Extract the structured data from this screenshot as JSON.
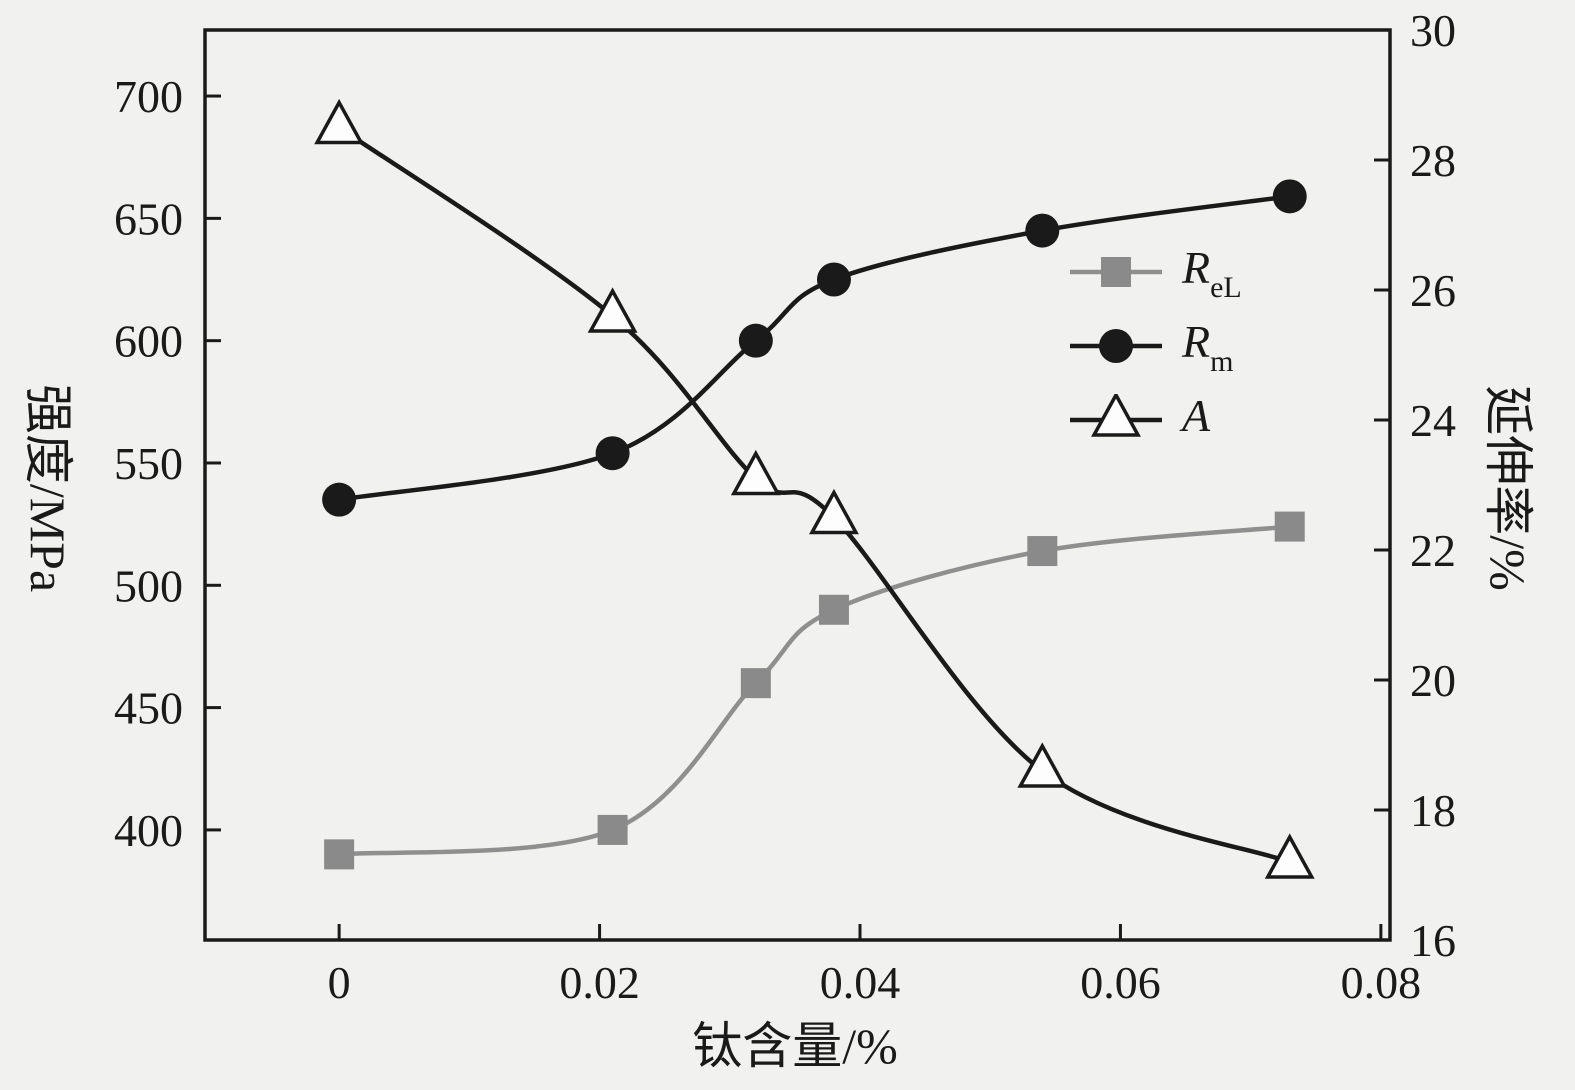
{
  "chart_data": {
    "type": "line",
    "title": "",
    "xlabel": "钛含量/%",
    "ylabel_left": "强度/MPa",
    "ylabel_right": "延伸率/%",
    "x": [
      0,
      0.021,
      0.032,
      0.038,
      0.054,
      0.073
    ],
    "series": [
      {
        "name": "ReL",
        "axis": "left",
        "marker": "square",
        "color": "#8f8f8f",
        "marker_fill": "#8a8a8a",
        "values": [
          390,
          400,
          460,
          490,
          514,
          524
        ]
      },
      {
        "name": "Rm",
        "axis": "left",
        "marker": "circle",
        "color": "#1a1a1a",
        "marker_fill": "#1a1a1a",
        "values": [
          535,
          554,
          600,
          625,
          645,
          659
        ]
      },
      {
        "name": "A",
        "axis": "right",
        "marker": "triangle",
        "color": "#1a1a1a",
        "marker_fill": "#fdfdfd",
        "values": [
          28.5,
          25.6,
          23.1,
          22.5,
          18.6,
          17.2
        ]
      }
    ],
    "axes": {
      "x": {
        "min": -0.0103,
        "max": 0.0807,
        "ticks": [
          0,
          0.02,
          0.04,
          0.06,
          0.08
        ],
        "tick_labels": [
          "0",
          "0.02",
          "0.04",
          "0.06",
          "0.08"
        ]
      },
      "y_left": {
        "min": 355,
        "max": 727,
        "ticks": [
          400,
          450,
          500,
          550,
          600,
          650,
          700
        ],
        "tick_labels": [
          "400",
          "450",
          "500",
          "550",
          "600",
          "650",
          "700"
        ]
      },
      "y_right": {
        "min": 16,
        "max": 30,
        "ticks": [
          16,
          18,
          20,
          22,
          24,
          26,
          28,
          30
        ],
        "tick_labels": [
          "16",
          "18",
          "20",
          "22",
          "24",
          "26",
          "28",
          "30"
        ]
      }
    },
    "legend": [
      {
        "label": "R",
        "sub": "eL"
      },
      {
        "label": "R",
        "sub": "m"
      },
      {
        "label": "A",
        "sub": ""
      }
    ],
    "colors": {
      "background": "#f1f1ef",
      "plot_background": "#f1f1ef",
      "frame": "#1a1a1a",
      "gray": "#8f8f8f",
      "black": "#1a1a1a"
    },
    "legend_position": "upper-right-inside",
    "grid": "off"
  }
}
